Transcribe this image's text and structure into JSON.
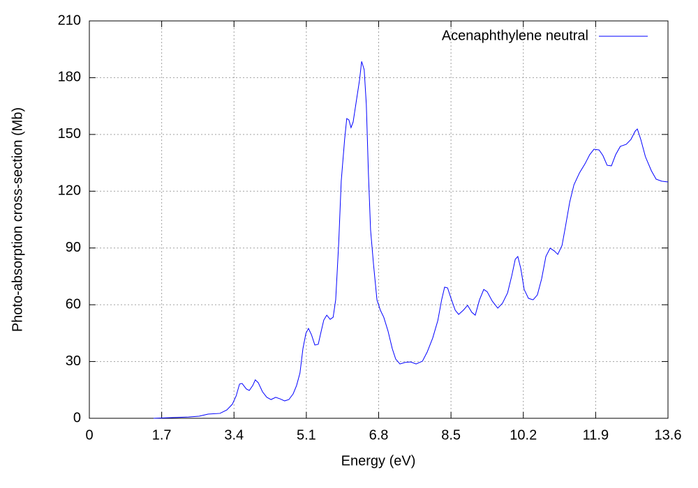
{
  "chart_data": {
    "type": "line",
    "x_label": "Energy (eV)",
    "y_label": "Photo-absorption cross-section (Mb)",
    "xlim": [
      0,
      13.6
    ],
    "ylim": [
      0,
      210
    ],
    "xticks": [
      0,
      1.7,
      3.4,
      5.1,
      6.8,
      8.5,
      10.2,
      11.9,
      13.6
    ],
    "yticks": [
      0,
      30,
      60,
      90,
      120,
      150,
      180,
      210
    ],
    "grid": true,
    "legend": "top-right",
    "series": [
      {
        "name": "Acenaphthylene neutral",
        "color": "#0000ff",
        "x": [
          1.51,
          2.0,
          2.33,
          2.58,
          2.79,
          3.07,
          3.23,
          3.36,
          3.45,
          3.53,
          3.59,
          3.69,
          3.76,
          3.84,
          3.9,
          3.97,
          4.07,
          4.17,
          4.27,
          4.38,
          4.48,
          4.59,
          4.69,
          4.79,
          4.87,
          4.95,
          5.02,
          5.09,
          5.15,
          5.22,
          5.3,
          5.38,
          5.45,
          5.51,
          5.58,
          5.66,
          5.73,
          5.79,
          5.86,
          5.92,
          6.0,
          6.05,
          6.1,
          6.15,
          6.2,
          6.27,
          6.35,
          6.4,
          6.46,
          6.51,
          6.56,
          6.61,
          6.68,
          6.76,
          6.84,
          6.92,
          7.02,
          7.12,
          7.2,
          7.3,
          7.42,
          7.55,
          7.68,
          7.83,
          7.94,
          8.07,
          8.19,
          8.28,
          8.35,
          8.42,
          8.5,
          8.6,
          8.68,
          8.79,
          8.89,
          8.99,
          9.07,
          9.17,
          9.27,
          9.35,
          9.47,
          9.6,
          9.71,
          9.83,
          9.93,
          10.01,
          10.07,
          10.14,
          10.22,
          10.32,
          10.43,
          10.53,
          10.63,
          10.73,
          10.83,
          10.93,
          11.01,
          11.11,
          11.19,
          11.29,
          11.39,
          11.52,
          11.65,
          11.76,
          11.86,
          11.98,
          12.07,
          12.17,
          12.27,
          12.37,
          12.48,
          12.62,
          12.73,
          12.83,
          12.88,
          12.96,
          13.07,
          13.21,
          13.32,
          13.45,
          13.6
        ],
        "values": [
          0,
          0.4,
          0.7,
          1.1,
          2.2,
          2.6,
          4.4,
          7.4,
          11.8,
          18.1,
          18.4,
          15.5,
          14.7,
          17.3,
          20.3,
          18.8,
          14.0,
          11.1,
          9.9,
          11.1,
          10.3,
          9.2,
          9.9,
          12.9,
          17.3,
          23.9,
          36.8,
          44.9,
          47.5,
          44.2,
          38.7,
          39.1,
          46.1,
          51.9,
          54.5,
          52.3,
          53.4,
          62.6,
          92.1,
          125.3,
          147.4,
          158.4,
          157.7,
          153.6,
          156.6,
          166.9,
          178.7,
          188.6,
          184.2,
          165.8,
          128.9,
          99.5,
          81.1,
          62.6,
          57.1,
          53.4,
          46.1,
          36.8,
          31.3,
          28.7,
          29.5,
          29.8,
          28.7,
          30.2,
          35.0,
          42.4,
          51.6,
          62.6,
          69.3,
          68.9,
          63.4,
          57.1,
          54.9,
          57.1,
          59.7,
          56.0,
          54.5,
          62.6,
          68.1,
          66.9,
          61.9,
          58.2,
          60.8,
          66.3,
          75.5,
          84.0,
          85.5,
          79.2,
          68.1,
          63.4,
          62.6,
          65.2,
          73.7,
          85.5,
          89.9,
          88.4,
          86.6,
          91.4,
          101.3,
          114.2,
          123.4,
          129.7,
          134.5,
          139.3,
          142.2,
          141.8,
          138.9,
          133.7,
          133.4,
          139.3,
          143.7,
          144.8,
          147.4,
          151.8,
          152.9,
          147.4,
          138.2,
          130.8,
          126.4,
          125.3,
          124.9
        ]
      }
    ]
  }
}
